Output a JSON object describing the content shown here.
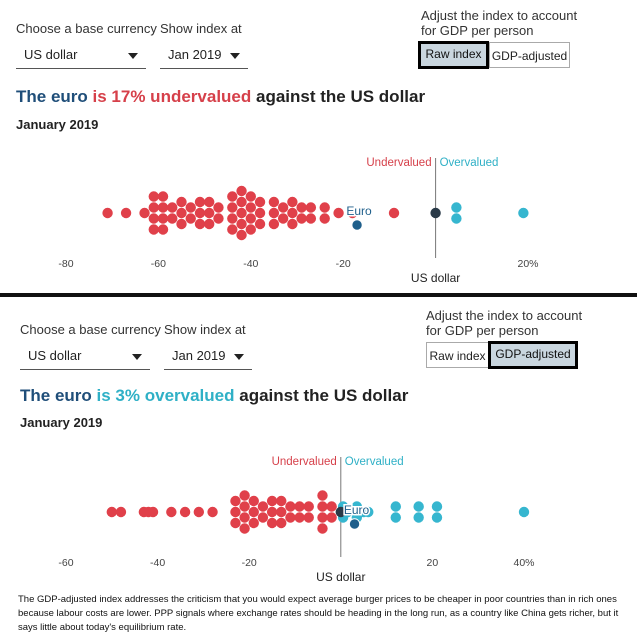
{
  "panels": [
    {
      "controls": {
        "base_label": "Choose a base currency",
        "base_value": "US dollar",
        "index_label": "Show index at",
        "index_value": "Jan 2019",
        "adjust_label": "Adjust the index to account for GDP per person",
        "raw_label": "Raw index",
        "gdp_label": "GDP-adjusted",
        "active": "raw"
      },
      "headline": {
        "lead": "The euro",
        "verdict": "is 17% undervalued",
        "tail": "against the US dollar",
        "tone": "red"
      },
      "subhead": "January 2019",
      "chart_data": {
        "type": "scatter",
        "title": "",
        "xlabel": "US dollar",
        "x_ticks": [
          -80,
          -60,
          -40,
          -20,
          0,
          20
        ],
        "x_tick_labels": [
          "-80",
          "-60",
          "-40",
          "-20",
          "",
          "20%"
        ],
        "xlim": [
          -88,
          26
        ],
        "zero_labels": {
          "under": "Undervalued",
          "over": "Overvalued"
        },
        "highlight": {
          "name": "Euro",
          "value": -17
        },
        "base": {
          "value": 0
        },
        "points": [
          -71,
          -67,
          -63,
          -61,
          -61,
          -61,
          -61,
          -59,
          -59,
          -59,
          -59,
          -57,
          -57,
          -55,
          -55,
          -55,
          -53,
          -53,
          -51,
          -51,
          -51,
          -49,
          -49,
          -49,
          -47,
          -47,
          -44,
          -44,
          -44,
          -44,
          -42,
          -42,
          -42,
          -42,
          -42,
          -40,
          -40,
          -40,
          -40,
          -38,
          -38,
          -38,
          -35,
          -35,
          -35,
          -33,
          -33,
          -31,
          -31,
          -31,
          -29,
          -29,
          -27,
          -27,
          -24,
          -24,
          -21,
          -18,
          -9,
          4.5,
          4.5,
          19
        ]
      }
    },
    {
      "controls": {
        "base_label": "Choose a base currency",
        "base_value": "US dollar",
        "index_label": "Show index at",
        "index_value": "Jan 2019",
        "adjust_label": "Adjust the index to account for GDP per person",
        "raw_label": "Raw index",
        "gdp_label": "GDP-adjusted",
        "active": "gdp"
      },
      "headline": {
        "lead": "The euro",
        "verdict": "is 3% overvalued",
        "tail": "against the US dollar",
        "tone": "teal"
      },
      "subhead": "January 2019",
      "chart_data": {
        "type": "scatter",
        "title": "",
        "xlabel": "US dollar",
        "x_ticks": [
          -60,
          -40,
          -20,
          0,
          20,
          40
        ],
        "x_tick_labels": [
          "-60",
          "-40",
          "-20",
          "",
          "20",
          "40%"
        ],
        "xlim": [
          -67,
          47
        ],
        "zero_labels": {
          "under": "Undervalued",
          "over": "Overvalued"
        },
        "highlight": {
          "name": "Euro",
          "value": 3
        },
        "base": {
          "value": 0
        },
        "points": [
          -50,
          -48,
          -43,
          -42,
          -41,
          -37,
          -34,
          -31,
          -28,
          -23,
          -23,
          -23,
          -21,
          -21,
          -21,
          -21,
          -19,
          -19,
          -19,
          -17,
          -17,
          -15,
          -15,
          -15,
          -13,
          -13,
          -13,
          -11,
          -11,
          -9,
          -9,
          -7,
          -7,
          -4,
          -4,
          -4,
          -4,
          -2,
          -2,
          0.5,
          0.5,
          1.5,
          3.5,
          3.5,
          5,
          6,
          12,
          12,
          17,
          17,
          21,
          21,
          40
        ]
      }
    }
  ],
  "footnote": "The GDP-adjusted index addresses the criticism that you would expect average burger prices to be cheaper in poor countries than in rich ones because labour costs are lower. PPP signals where exchange rates should be heading in the long run, as a country like China gets richer, but it says little about today's equilibrium rate.",
  "colors": {
    "under": "#e0404a",
    "over": "#36b6cf",
    "euro": "#1f5f8b",
    "base": "#2a3a48",
    "axis": "#777777"
  }
}
